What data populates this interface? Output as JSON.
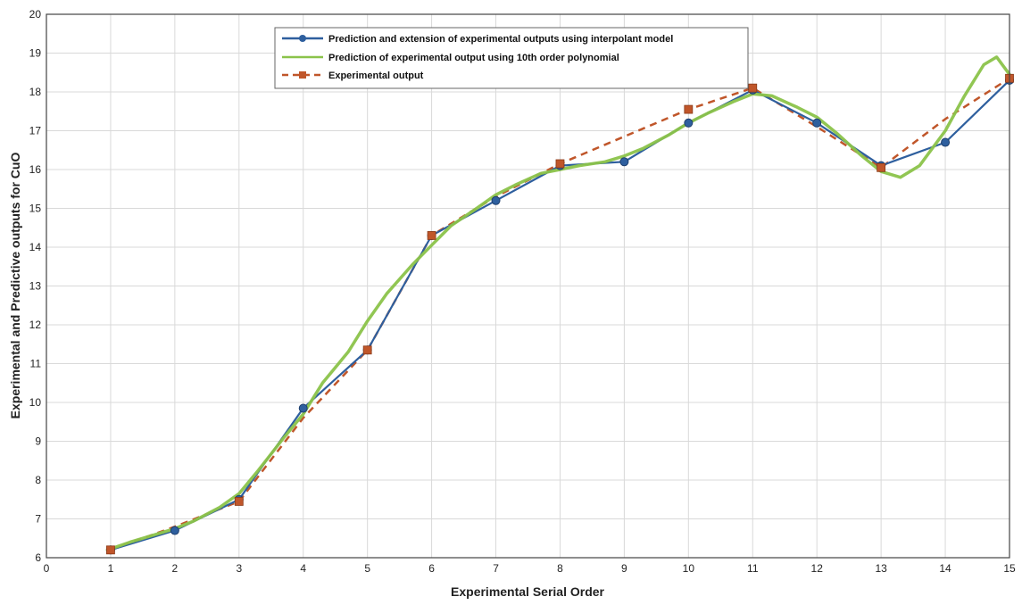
{
  "chart_data": {
    "type": "line",
    "xlabel": "Experimental Serial Order",
    "ylabel": "Experimental and Predictive outputs for CuO",
    "xlim": [
      0,
      15
    ],
    "ylim": [
      6,
      20
    ],
    "x_ticks": [
      0,
      1,
      2,
      3,
      4,
      5,
      6,
      7,
      8,
      9,
      10,
      11,
      12,
      13,
      14,
      15
    ],
    "y_ticks": [
      6,
      7,
      8,
      9,
      10,
      11,
      12,
      13,
      14,
      15,
      16,
      17,
      18,
      19,
      20
    ],
    "grid": true,
    "legend_position": "top-center",
    "series": [
      {
        "name": "Prediction and extension of experimental outputs using interpolant model",
        "style": "solid line with circle markers",
        "color": "#2e5f9e",
        "x": [
          1,
          2,
          3,
          4,
          5,
          6,
          7,
          8,
          9,
          10,
          11,
          12,
          13,
          14,
          15
        ],
        "y": [
          6.2,
          6.7,
          7.5,
          9.85,
          11.35,
          14.3,
          15.2,
          16.1,
          16.2,
          17.2,
          18.05,
          17.2,
          16.1,
          16.7,
          18.3
        ]
      },
      {
        "name": "Prediction of experimental output using 10th order polynomial",
        "style": "thick smooth curve",
        "color": "#8bc34a",
        "x": [
          0.95,
          1.3,
          1.7,
          2,
          2.3,
          2.7,
          3,
          3.3,
          3.7,
          4,
          4.3,
          4.7,
          5,
          5.3,
          5.7,
          6,
          6.3,
          6.7,
          7,
          7.3,
          7.7,
          8,
          8.3,
          8.7,
          9,
          9.3,
          9.7,
          10,
          10.3,
          10.7,
          11,
          11.3,
          11.7,
          12,
          12.3,
          12.7,
          13,
          13.3,
          13.6,
          14,
          14.3,
          14.6,
          14.8,
          15
        ],
        "y": [
          6.2,
          6.4,
          6.6,
          6.75,
          6.95,
          7.3,
          7.65,
          8.25,
          9.1,
          9.7,
          10.5,
          11.3,
          12.1,
          12.8,
          13.55,
          14.05,
          14.55,
          15.0,
          15.35,
          15.6,
          15.9,
          16.0,
          16.1,
          16.2,
          16.35,
          16.55,
          16.9,
          17.2,
          17.45,
          17.75,
          17.95,
          17.9,
          17.6,
          17.35,
          16.95,
          16.35,
          15.95,
          15.8,
          16.1,
          17.0,
          17.9,
          18.7,
          18.9,
          18.45
        ]
      },
      {
        "name": "Experimental output",
        "style": "dashed line with square markers",
        "color": "#c0562a",
        "x": [
          1,
          2,
          3,
          4,
          5,
          6,
          7,
          8,
          9,
          10,
          11,
          12,
          13,
          14,
          15
        ],
        "y": [
          6.2,
          6.8,
          7.45,
          9.6,
          11.35,
          14.3,
          15.3,
          16.15,
          16.85,
          17.55,
          18.1,
          17.1,
          16.05,
          17.3,
          18.35
        ],
        "marker_x": [
          1,
          3,
          5,
          6,
          8,
          10,
          11,
          13,
          15
        ],
        "marker_y": [
          6.2,
          7.45,
          11.35,
          14.3,
          16.15,
          17.55,
          18.1,
          16.05,
          18.35
        ]
      }
    ]
  }
}
